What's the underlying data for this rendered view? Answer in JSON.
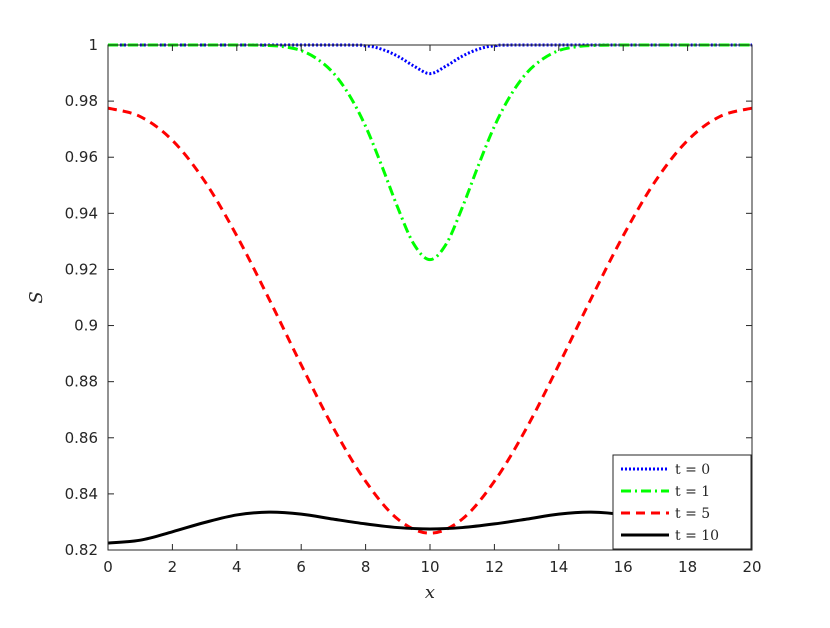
{
  "chart_data": {
    "type": "line",
    "xlabel": "x",
    "ylabel": "S",
    "xlim": [
      0,
      20
    ],
    "ylim": [
      0.82,
      1.0
    ],
    "xticks": [
      "0",
      "2",
      "4",
      "6",
      "8",
      "10",
      "12",
      "14",
      "16",
      "18",
      "20"
    ],
    "yticks": [
      "0.82",
      "0.84",
      "0.86",
      "0.88",
      "0.9",
      "0.92",
      "0.94",
      "0.96",
      "0.98",
      "1"
    ],
    "grid": false,
    "legend_position": "bottom-right",
    "series": [
      {
        "name": "t = 0",
        "color": "#0000ff",
        "style": "dotted",
        "x": [
          0,
          7,
          8,
          8.5,
          9,
          9.5,
          10,
          10.5,
          11,
          11.5,
          12,
          13,
          20
        ],
        "y": [
          1.0,
          1.0,
          0.9997,
          0.9985,
          0.996,
          0.9925,
          0.9898,
          0.9925,
          0.996,
          0.9985,
          0.9997,
          1.0,
          1.0
        ]
      },
      {
        "name": "t = 1",
        "color": "#00ff00",
        "style": "dashdot",
        "x": [
          0,
          4,
          5,
          5.5,
          6,
          6.5,
          7,
          7.5,
          8,
          8.5,
          9,
          9.5,
          10,
          10.5,
          11,
          11.5,
          12,
          12.5,
          13,
          13.5,
          14,
          14.5,
          15,
          16,
          20
        ],
        "y": [
          1.0,
          1.0,
          0.9998,
          0.9993,
          0.998,
          0.995,
          0.99,
          0.982,
          0.971,
          0.957,
          0.942,
          0.929,
          0.9235,
          0.929,
          0.942,
          0.957,
          0.971,
          0.982,
          0.99,
          0.995,
          0.998,
          0.9993,
          0.9998,
          1.0,
          1.0
        ]
      },
      {
        "name": "t = 5",
        "color": "#ff0000",
        "style": "dashed",
        "x": [
          0,
          1,
          2,
          3,
          4,
          5,
          6,
          7,
          8,
          9,
          10,
          11,
          12,
          13,
          14,
          15,
          16,
          17,
          18,
          19,
          20
        ],
        "y": [
          0.9775,
          0.9745,
          0.966,
          0.9515,
          0.932,
          0.9095,
          0.886,
          0.8635,
          0.8445,
          0.831,
          0.826,
          0.831,
          0.8445,
          0.8635,
          0.886,
          0.9095,
          0.932,
          0.9515,
          0.966,
          0.9745,
          0.9775
        ]
      },
      {
        "name": "t = 10",
        "color": "#000000",
        "style": "solid",
        "x": [
          0,
          1,
          2,
          3,
          4,
          5,
          6,
          7,
          8,
          9,
          10,
          11,
          12,
          13,
          14,
          15,
          16,
          17,
          18,
          19,
          20
        ],
        "y": [
          0.8225,
          0.8235,
          0.8265,
          0.8298,
          0.8325,
          0.8335,
          0.8328,
          0.831,
          0.8293,
          0.828,
          0.8275,
          0.828,
          0.8293,
          0.831,
          0.8328,
          0.8335,
          0.8325,
          0.8298,
          0.8265,
          0.8235,
          0.8225
        ]
      }
    ]
  }
}
